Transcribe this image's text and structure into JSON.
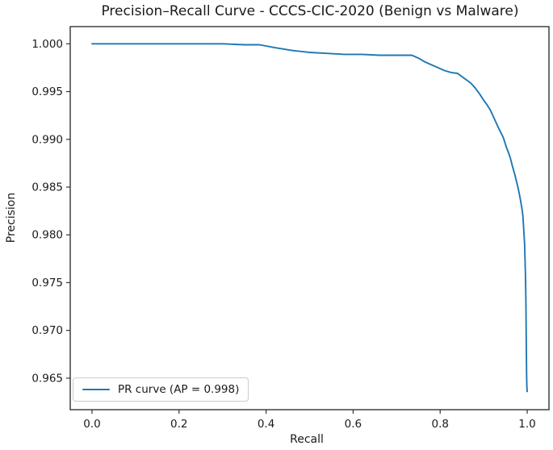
{
  "chart_data": {
    "type": "line",
    "title": "Precision–Recall Curve - CCCS-CIC-2020 (Benign vs Malware)",
    "xlabel": "Recall",
    "ylabel": "Precision",
    "xlim": [
      -0.05,
      1.05
    ],
    "ylim": [
      0.9617,
      1.0018
    ],
    "grid": false,
    "x_ticks": {
      "values": [
        0.0,
        0.2,
        0.4,
        0.6,
        0.8,
        1.0
      ],
      "labels": [
        "0.0",
        "0.2",
        "0.4",
        "0.6",
        "0.8",
        "1.0"
      ]
    },
    "y_ticks": {
      "values": [
        1.0,
        0.995,
        0.99,
        0.985,
        0.98,
        0.975,
        0.97,
        0.965
      ],
      "labels": [
        "1.000",
        "0.995",
        "0.990",
        "0.985",
        "0.980",
        "0.975",
        "0.970",
        "0.965"
      ]
    },
    "legend": {
      "position": "lower-left",
      "entries": [
        {
          "label": "PR curve (AP = 0.998)",
          "color": "#1f77b4"
        }
      ]
    },
    "series": [
      {
        "name": "PR curve",
        "ap": 0.998,
        "color": "#1f77b4",
        "points": [
          [
            0.0,
            1.0
          ],
          [
            0.05,
            1.0
          ],
          [
            0.1,
            1.0
          ],
          [
            0.15,
            1.0
          ],
          [
            0.2,
            1.0
          ],
          [
            0.25,
            1.0
          ],
          [
            0.3,
            1.0
          ],
          [
            0.35,
            0.9999
          ],
          [
            0.385,
            0.9999
          ],
          [
            0.42,
            0.9996
          ],
          [
            0.46,
            0.9993
          ],
          [
            0.5,
            0.9991
          ],
          [
            0.54,
            0.999
          ],
          [
            0.58,
            0.9989
          ],
          [
            0.62,
            0.9989
          ],
          [
            0.66,
            0.9988
          ],
          [
            0.7,
            0.9988
          ],
          [
            0.735,
            0.9988
          ],
          [
            0.75,
            0.9985
          ],
          [
            0.765,
            0.9981
          ],
          [
            0.78,
            0.9978
          ],
          [
            0.795,
            0.9975
          ],
          [
            0.81,
            0.9972
          ],
          [
            0.825,
            0.997
          ],
          [
            0.84,
            0.9969
          ],
          [
            0.855,
            0.9964
          ],
          [
            0.87,
            0.9959
          ],
          [
            0.88,
            0.9954
          ],
          [
            0.89,
            0.9948
          ],
          [
            0.9,
            0.9941
          ],
          [
            0.908,
            0.9936
          ],
          [
            0.915,
            0.9931
          ],
          [
            0.925,
            0.9921
          ],
          [
            0.935,
            0.9911
          ],
          [
            0.945,
            0.9902
          ],
          [
            0.952,
            0.9892
          ],
          [
            0.957,
            0.9886
          ],
          [
            0.961,
            0.9881
          ],
          [
            0.966,
            0.9872
          ],
          [
            0.971,
            0.9864
          ],
          [
            0.976,
            0.9855
          ],
          [
            0.98,
            0.9847
          ],
          [
            0.984,
            0.9838
          ],
          [
            0.988,
            0.9827
          ],
          [
            0.99,
            0.982
          ],
          [
            0.992,
            0.9806
          ],
          [
            0.994,
            0.9791
          ],
          [
            0.995,
            0.9776
          ],
          [
            0.996,
            0.9757
          ],
          [
            0.997,
            0.9733
          ],
          [
            0.9975,
            0.9706
          ],
          [
            0.998,
            0.9678
          ],
          [
            0.9986,
            0.9654
          ],
          [
            0.9991,
            0.9642
          ],
          [
            1.0,
            0.9636
          ]
        ]
      }
    ],
    "colors": {
      "line": "#1f77b4",
      "spine": "#333333",
      "text": "#1a1a1a",
      "legend_border": "#cccccc"
    }
  }
}
